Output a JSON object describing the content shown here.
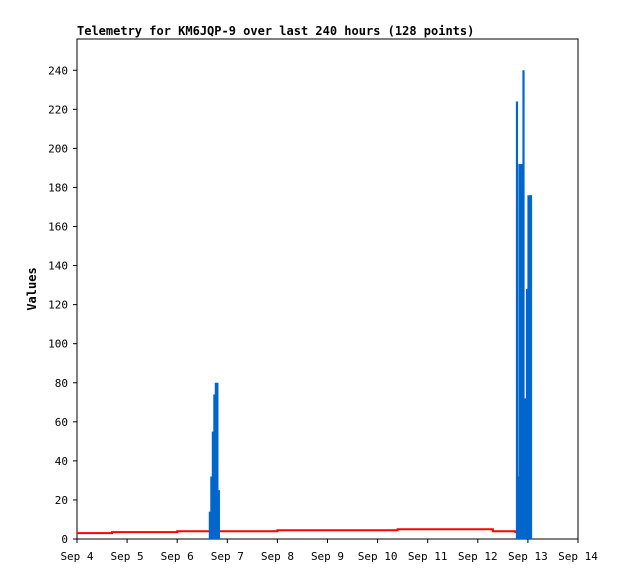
{
  "chart_data": {
    "type": "area",
    "title": "Telemetry for KM6JQP-9 over last 240 hours (128 points)",
    "xlabel": "",
    "ylabel": "Values",
    "x_ticks": [
      "Sep 4",
      "Sep 5",
      "Sep 6",
      "Sep 7",
      "Sep 8",
      "Sep 9",
      "Sep 10",
      "Sep 11",
      "Sep 12",
      "Sep 13",
      "Sep 14"
    ],
    "xlim": [
      "Sep 4",
      "Sep 14"
    ],
    "y_ticks": [
      0,
      20,
      40,
      60,
      80,
      100,
      120,
      140,
      160,
      180,
      200,
      220,
      240
    ],
    "ylim": [
      0,
      256
    ],
    "grid": false,
    "series": [
      {
        "color": "#ff0000",
        "style": "line",
        "x": [
          "Sep 4",
          "Sep 4.7",
          "Sep 6",
          "Sep 8",
          "Sep 10.4",
          "Sep 11.7",
          "Sep 12.3",
          "Sep 12.75"
        ],
        "values": [
          3,
          3.5,
          4,
          4.5,
          5,
          5,
          4,
          3
        ]
      },
      {
        "color": "#0066cc",
        "style": "spike",
        "x": [
          "Sep 6.65",
          "Sep 6.68",
          "Sep 6.71",
          "Sep 6.74",
          "Sep 6.77",
          "Sep 6.8",
          "Sep 6.83",
          "Sep 12.78",
          "Sep 12.8",
          "Sep 12.83",
          "Sep 12.86",
          "Sep 12.89",
          "Sep 12.91",
          "Sep 12.94",
          "Sep 12.96",
          "Sep 12.98",
          "Sep 13.01",
          "Sep 13.04",
          "Sep 13.06"
        ],
        "values": [
          14,
          32,
          55,
          74,
          80,
          80,
          25,
          224,
          32,
          192,
          192,
          192,
          240,
          72,
          64,
          128,
          176,
          176,
          176
        ]
      }
    ]
  }
}
